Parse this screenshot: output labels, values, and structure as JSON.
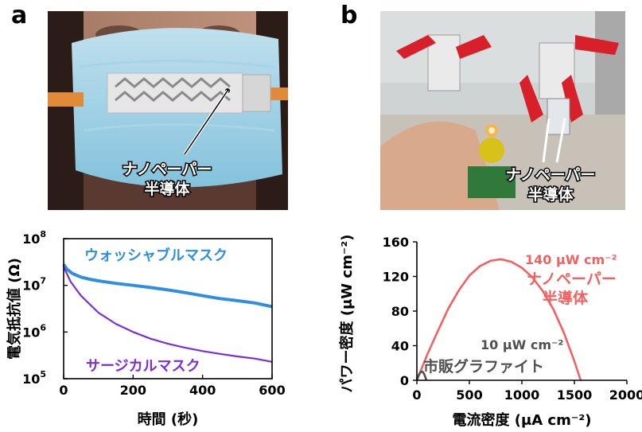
{
  "panels": {
    "a": {
      "letter": "a",
      "photo_label_line1": "ナノペーパー",
      "photo_label_line2": "半導体"
    },
    "b": {
      "letter": "b",
      "photo_label_line1": "ナノペーパー",
      "photo_label_line2": "半導体"
    }
  },
  "colors": {
    "washable": "#2e8fe0",
    "surgical": "#7a2fd6",
    "nanopaper": "#f06262",
    "graphite": "#505050"
  },
  "chart_data": [
    {
      "type": "line",
      "title": "",
      "xlabel": "時間 (秒)",
      "ylabel": "電気抵抗値 (Ω)",
      "xlim": [
        0,
        600
      ],
      "ylim": [
        100000,
        100000000
      ],
      "yscale": "log",
      "x_ticks": [
        "0",
        "200",
        "400",
        "600"
      ],
      "y_ticks": [
        {
          "base": "10",
          "exp": "5"
        },
        {
          "base": "10",
          "exp": "6"
        },
        {
          "base": "10",
          "exp": "7"
        },
        {
          "base": "10",
          "exp": "8"
        }
      ],
      "series": [
        {
          "name": "ウォッシャブルマスク",
          "color": "#2e8fe0",
          "x": [
            0,
            10,
            25,
            50,
            75,
            100,
            150,
            200,
            250,
            300,
            350,
            400,
            450,
            500,
            550,
            600
          ],
          "y": [
            28000000,
            22000000,
            18000000,
            15000000,
            13500000,
            12500000,
            11000000,
            10000000,
            9000000,
            8000000,
            7000000,
            6000000,
            5200000,
            4700000,
            4200000,
            3500000
          ]
        },
        {
          "name": "サージカルマスク",
          "color": "#7a2fd6",
          "x": [
            0,
            20,
            50,
            100,
            150,
            200,
            250,
            300,
            350,
            400,
            450,
            500,
            550,
            600
          ],
          "y": [
            25000000,
            12000000,
            6000000,
            2600000,
            1500000,
            1000000,
            720000,
            560000,
            460000,
            390000,
            340000,
            300000,
            270000,
            230000
          ]
        }
      ]
    },
    {
      "type": "line",
      "title": "",
      "xlabel": "電流密度 (μA cm⁻²)",
      "ylabel": "パワー密度 (μW cm⁻²)",
      "xlim": [
        0,
        2000
      ],
      "ylim": [
        0,
        160
      ],
      "x_ticks": [
        "0",
        "500",
        "1000",
        "1500",
        "2000"
      ],
      "y_ticks": [
        "0",
        "40",
        "80",
        "120",
        "160"
      ],
      "series": [
        {
          "name": "ナノペーパー半導体",
          "color": "#f06262",
          "x": [
            0,
            100,
            200,
            300,
            400,
            500,
            600,
            700,
            800,
            900,
            1000,
            1100,
            1200,
            1300,
            1400,
            1500,
            1560
          ],
          "y": [
            0,
            30,
            57,
            83,
            104,
            121,
            132,
            138,
            140,
            137,
            130,
            119,
            103,
            82,
            55,
            22,
            0
          ]
        },
        {
          "name": "市販グラファイト",
          "color": "#505050",
          "x": [
            0,
            10,
            20,
            30,
            40,
            50,
            60,
            70,
            80,
            90
          ],
          "y": [
            0,
            3.5,
            6.5,
            8.5,
            9.8,
            10,
            9.2,
            7,
            4,
            0
          ]
        }
      ],
      "annotations": [
        {
          "text": "140 μW cm⁻²",
          "color": "#f06262"
        },
        {
          "text": "10 μW cm⁻²",
          "color": "#505050"
        }
      ]
    }
  ]
}
